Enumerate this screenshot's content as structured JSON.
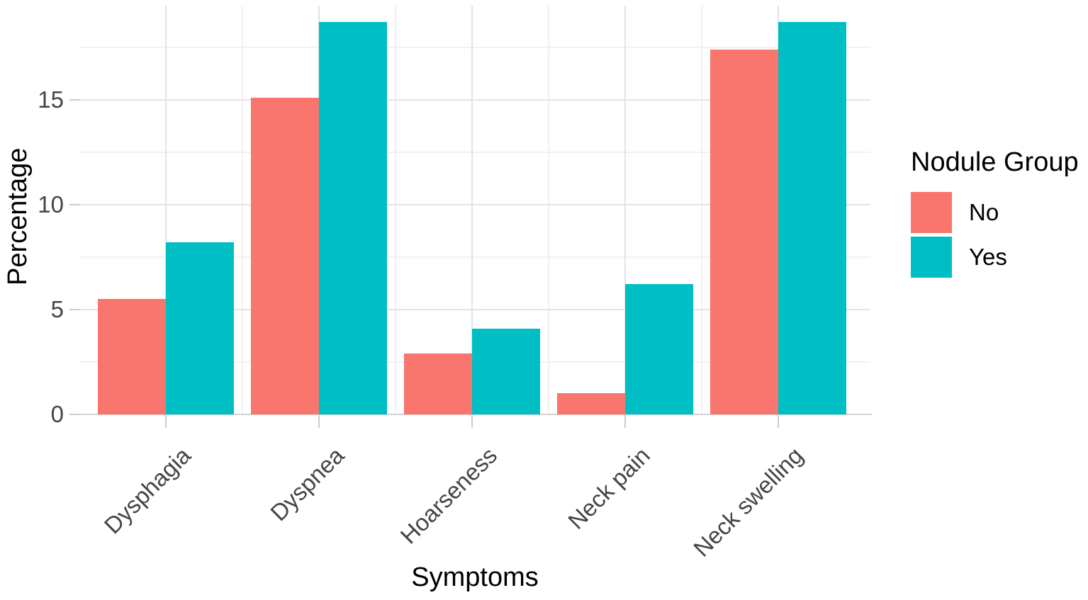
{
  "chart_data": {
    "type": "bar",
    "title": "",
    "xlabel": "Symptoms",
    "ylabel": "Percentage",
    "categories": [
      "Dysphagia",
      "Dyspnea",
      "Hoarseness",
      "Neck pain",
      "Neck swelling"
    ],
    "series": [
      {
        "name": "No",
        "color": "#F8766D",
        "values": [
          5.5,
          15.1,
          2.9,
          1.0,
          17.4
        ]
      },
      {
        "name": "Yes",
        "color": "#00BFC4",
        "values": [
          8.2,
          18.7,
          4.1,
          6.2,
          18.7
        ]
      }
    ],
    "y_ticks": [
      0,
      5,
      10,
      15
    ],
    "y_minor_ticks": [
      2.5,
      7.5,
      12.5,
      17.5
    ],
    "ylim": [
      0,
      19.5
    ],
    "grid": true,
    "x_tick_angle_deg": 45,
    "legend": {
      "title": "Nodule Group",
      "position": "right",
      "entries": [
        {
          "label": "No",
          "color": "#F8766D"
        },
        {
          "label": "Yes",
          "color": "#00BFC4"
        }
      ]
    }
  }
}
